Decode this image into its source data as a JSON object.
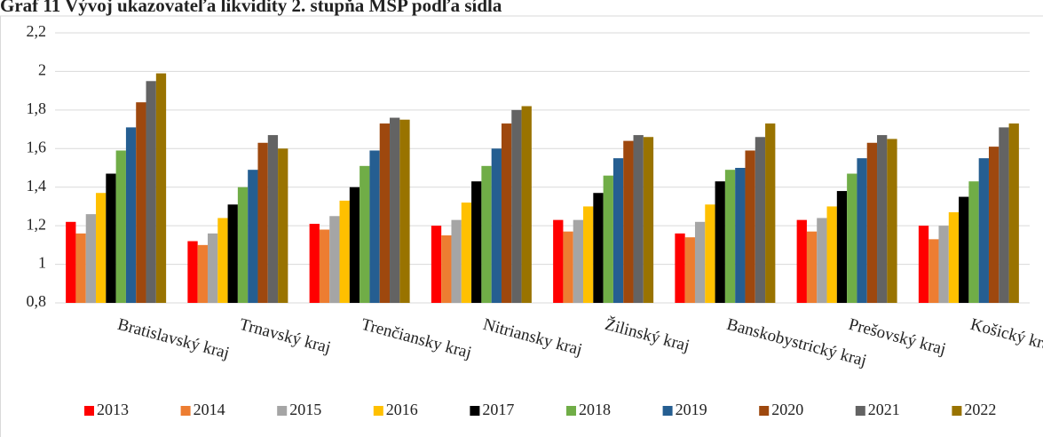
{
  "chart_data": {
    "type": "bar",
    "title": "Graf 11 Vývoj ukazovateľa likvidity 2. stupňa MSP podľa sídla",
    "categories": [
      "Bratislavský kraj",
      "Trnavský kraj",
      "Trenčiansky kraj",
      "Nitriansky kraj",
      "Žilinský kraj",
      "Banskobystrický kraj",
      "Prešovský kraj",
      "Košický kraj"
    ],
    "series": [
      {
        "name": "2013",
        "color": "#ff0000",
        "values": [
          1.22,
          1.12,
          1.21,
          1.2,
          1.23,
          1.16,
          1.23,
          1.2
        ]
      },
      {
        "name": "2014",
        "color": "#ed7d31",
        "values": [
          1.16,
          1.1,
          1.18,
          1.15,
          1.17,
          1.14,
          1.17,
          1.13
        ]
      },
      {
        "name": "2015",
        "color": "#a5a5a5",
        "values": [
          1.26,
          1.16,
          1.25,
          1.23,
          1.23,
          1.22,
          1.24,
          1.2
        ]
      },
      {
        "name": "2016",
        "color": "#ffc000",
        "values": [
          1.37,
          1.24,
          1.33,
          1.32,
          1.3,
          1.31,
          1.3,
          1.27
        ]
      },
      {
        "name": "2017",
        "color": "#000000",
        "values": [
          1.47,
          1.31,
          1.4,
          1.43,
          1.37,
          1.43,
          1.38,
          1.35
        ]
      },
      {
        "name": "2018",
        "color": "#70ad47",
        "values": [
          1.59,
          1.4,
          1.51,
          1.51,
          1.46,
          1.49,
          1.47,
          1.43
        ]
      },
      {
        "name": "2019",
        "color": "#255e91",
        "values": [
          1.71,
          1.49,
          1.59,
          1.6,
          1.55,
          1.5,
          1.55,
          1.55
        ]
      },
      {
        "name": "2020",
        "color": "#9e480e",
        "values": [
          1.84,
          1.63,
          1.73,
          1.73,
          1.64,
          1.59,
          1.63,
          1.61
        ]
      },
      {
        "name": "2021",
        "color": "#636363",
        "values": [
          1.95,
          1.67,
          1.76,
          1.8,
          1.67,
          1.66,
          1.67,
          1.71
        ]
      },
      {
        "name": "2022",
        "color": "#997300",
        "values": [
          1.99,
          1.6,
          1.75,
          1.82,
          1.66,
          1.73,
          1.65,
          1.73
        ]
      }
    ],
    "ylim": [
      0.8,
      2.2
    ],
    "yticks": [
      {
        "value": 0.8,
        "label": "0,8"
      },
      1,
      {
        "value": 1.2,
        "label": "1,2"
      },
      {
        "value": 1.4,
        "label": "1,4"
      },
      {
        "value": 1.6,
        "label": "1,6"
      },
      {
        "value": 1.8,
        "label": "1,8"
      },
      2,
      {
        "value": 2.2,
        "label": "2,2"
      }
    ],
    "grid": true,
    "legend": "bottom"
  }
}
